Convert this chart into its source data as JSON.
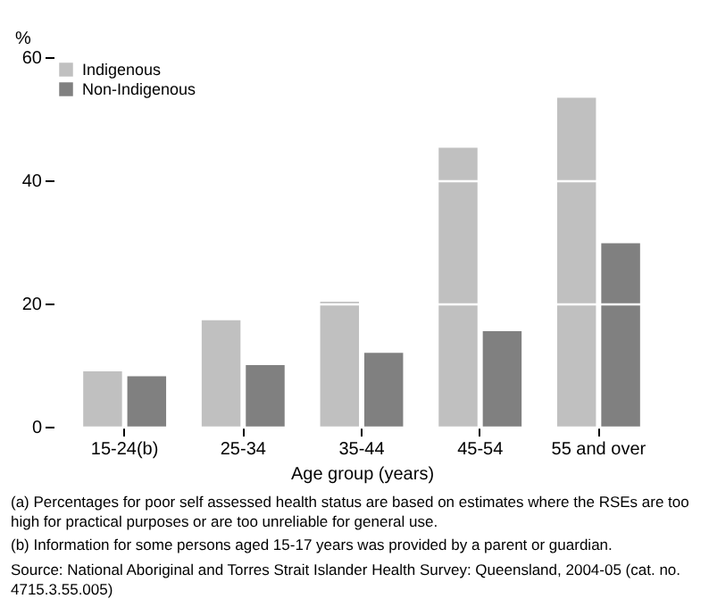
{
  "chart_data": {
    "type": "bar",
    "xlabel": "Age group (years)",
    "ylabel": "%",
    "categories": [
      "15-24(b)",
      "25-34",
      "35-44",
      "45-54",
      "55 and over"
    ],
    "series": [
      {
        "name": "Indigenous",
        "color": "#c0c0c0",
        "values": [
          9,
          17.3,
          20.3,
          45.3,
          53.4
        ]
      },
      {
        "name": "Non-Indigenous",
        "color": "#808080",
        "values": [
          8.2,
          10,
          12,
          15.5,
          29.8
        ]
      }
    ],
    "ylim": [
      0,
      60
    ],
    "yticks": [
      0,
      20,
      40,
      60
    ],
    "grid": "y",
    "legend": "top left",
    "annotations": [
      "(a) Percentages for poor self assessed health status are based on estimates where the RSEs are too high for practical purposes or are too unreliable for general use.",
      "(b) Information for some persons aged 15-17 years was provided by a parent or guardian.",
      "Source: National Aboriginal and Torres Strait Islander Health Survey: Queensland, 2004-05 (cat. no. 4715.3.55.005)"
    ]
  }
}
